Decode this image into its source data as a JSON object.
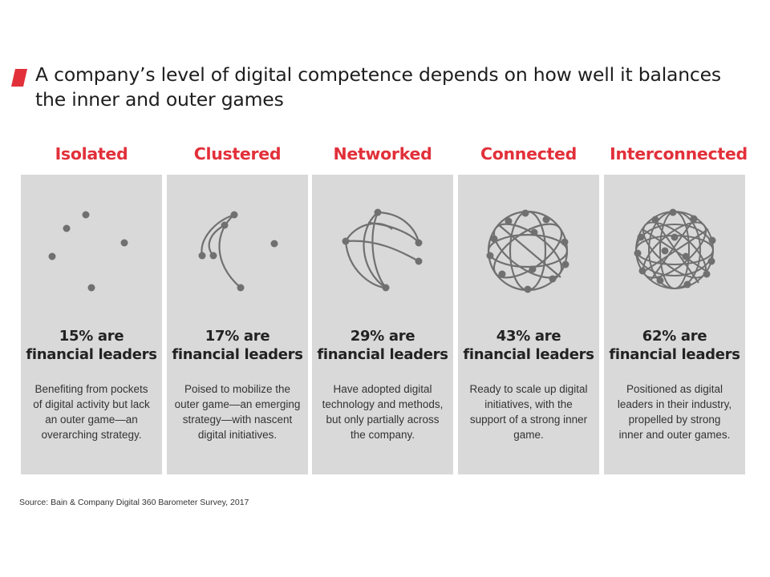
{
  "title": "A company’s level of digital competence depends on how well it balances the inner and outer games",
  "accent_color": "#e2303a",
  "panel_color": "#d9d9d9",
  "stages": [
    {
      "name": "Isolated",
      "stat_line1": "15% are",
      "stat_line2": "financial leaders",
      "description": "Benefiting from pockets of digital activity but lack an outer game—an overarching strategy.",
      "icon": "isolated-dots-network"
    },
    {
      "name": "Clustered",
      "stat_line1": "17% are",
      "stat_line2": "financial leaders",
      "description": "Poised to mobilize the outer game—an emerging strategy—with nascent digital initiatives.",
      "icon": "clustered-arc-network"
    },
    {
      "name": "Networked",
      "stat_line1": "29% are",
      "stat_line2": "financial leaders",
      "description": "Have adopted digital technology and methods, but only partially across the company.",
      "icon": "networked-arcs-network"
    },
    {
      "name": "Connected",
      "stat_line1": "43% are",
      "stat_line2": "financial leaders",
      "description": "Ready to scale up digital initiatives, with the support of a strong inner game.",
      "icon": "connected-sphere-network"
    },
    {
      "name": "Interconnected",
      "stat_line1": "62% are",
      "stat_line2": "financial leaders",
      "description": "Positioned as digital leaders in their industry, propelled by strong inner and outer games.",
      "icon": "interconnected-sphere-network"
    }
  ],
  "source": "Source: Bain & Company Digital 360 Barometer Survey, 2017"
}
